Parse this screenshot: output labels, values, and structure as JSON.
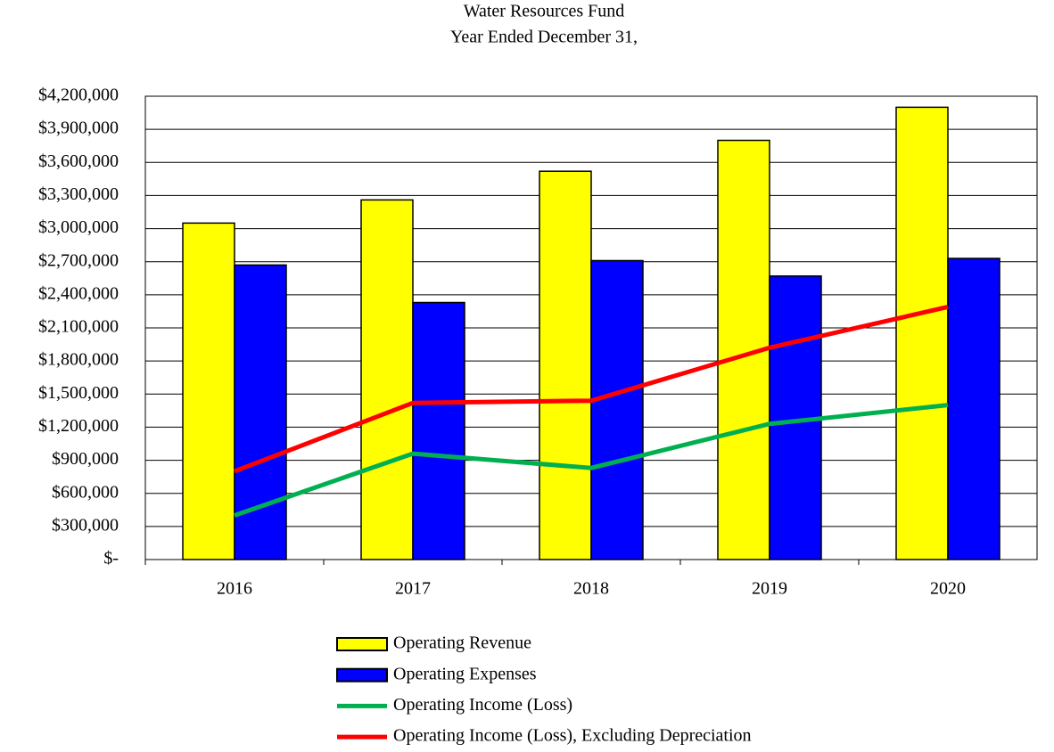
{
  "chart_data": {
    "type": "bar",
    "title": "Water Resources Fund",
    "subtitle": "Year Ended December 31,",
    "categories": [
      "2016",
      "2017",
      "2018",
      "2019",
      "2020"
    ],
    "series": [
      {
        "name": "Operating Revenue",
        "type": "bar",
        "color": "#ffff00",
        "values": [
          3050000,
          3260000,
          3520000,
          3800000,
          4100000
        ]
      },
      {
        "name": "Operating Expenses",
        "type": "bar",
        "color": "#0000ff",
        "values": [
          2670000,
          2330000,
          2710000,
          2570000,
          2730000
        ]
      },
      {
        "name": "Operating Income (Loss)",
        "type": "line",
        "color": "#00b050",
        "values": [
          400000,
          960000,
          830000,
          1230000,
          1400000
        ]
      },
      {
        "name": "Operating Income (Loss), Excluding Depreciation",
        "type": "line",
        "color": "#ff0000",
        "values": [
          800000,
          1420000,
          1440000,
          1920000,
          2290000
        ]
      }
    ],
    "ylim": [
      0,
      4200000
    ],
    "yticks": [
      {
        "value": 0,
        "label": "$-"
      },
      {
        "value": 300000,
        "label": "$300,000"
      },
      {
        "value": 600000,
        "label": "$600,000"
      },
      {
        "value": 900000,
        "label": "$900,000"
      },
      {
        "value": 1200000,
        "label": "$1,200,000"
      },
      {
        "value": 1500000,
        "label": "$1,500,000"
      },
      {
        "value": 1800000,
        "label": "$1,800,000"
      },
      {
        "value": 2100000,
        "label": "$2,100,000"
      },
      {
        "value": 2400000,
        "label": "$2,400,000"
      },
      {
        "value": 2700000,
        "label": "$2,700,000"
      },
      {
        "value": 3000000,
        "label": "$3,000,000"
      },
      {
        "value": 3300000,
        "label": "$3,300,000"
      },
      {
        "value": 3600000,
        "label": "$3,600,000"
      },
      {
        "value": 3900000,
        "label": "$3,900,000"
      },
      {
        "value": 4200000,
        "label": "$4,200,000"
      }
    ],
    "grid": true,
    "legend": "bottom"
  }
}
